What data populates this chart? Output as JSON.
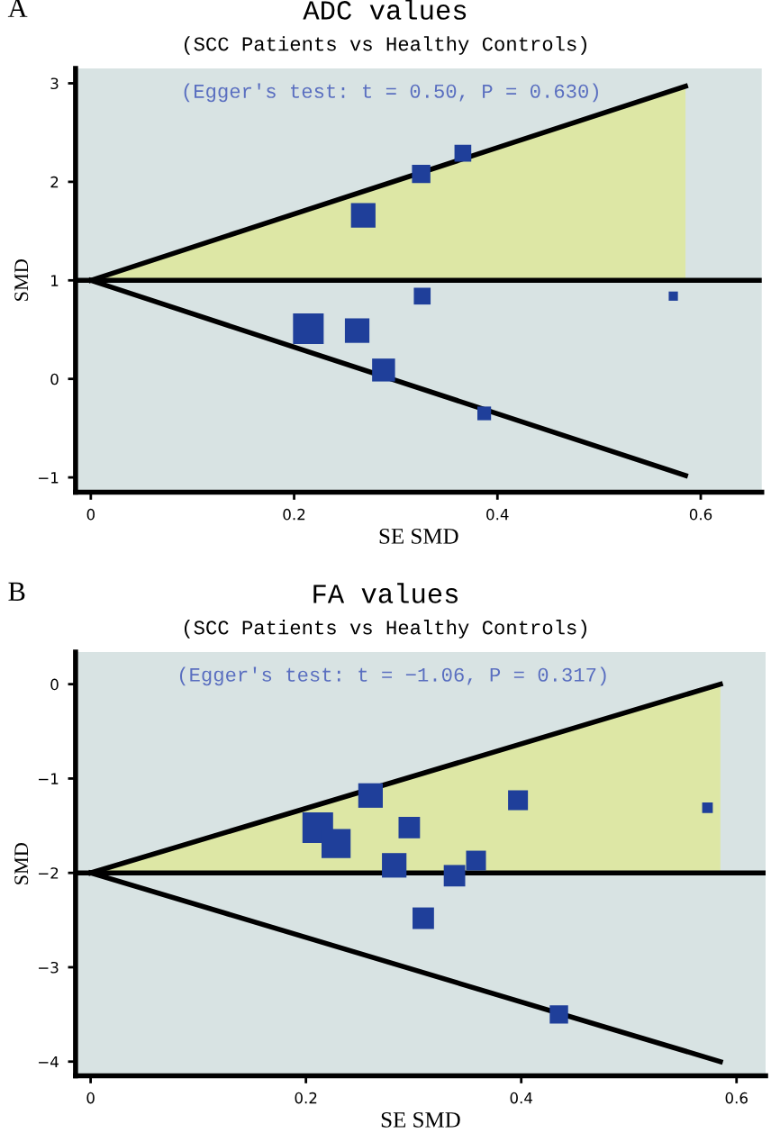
{
  "chart_data": [
    {
      "type": "bubble",
      "title": "ADC values",
      "subtitle": "(SCC Patients vs Healthy Controls)",
      "xlabel": "SE SMD",
      "ylabel": "SMD",
      "annotations": [
        "A",
        "(Egger's test: t = 0.50, P = 0.630)"
      ],
      "ref_lines": [
        {
          "axis": "y",
          "value": 1,
          "color": "#000000"
        }
      ],
      "xlim": [
        -0.015,
        0.66
      ],
      "ylim": [
        -1.15,
        3.15
      ],
      "xticks": [
        0,
        0.2,
        0.4,
        0.6
      ],
      "yticks": [
        -1,
        0,
        1,
        2,
        3
      ],
      "grid": false,
      "legend": false,
      "series": [
        {
          "type": "line",
          "color": "#000000",
          "x": [
            0,
            0.585
          ],
          "values": [
            1,
            2.97
          ]
        },
        {
          "type": "line",
          "color": "#000000",
          "x": [
            0,
            0.585
          ],
          "values": [
            1,
            -0.98
          ]
        },
        {
          "marker": "square",
          "color": "#1f3f9a",
          "x": [
            0.214,
            0.262,
            0.288,
            0.268,
            0.325,
            0.366,
            0.326,
            0.387,
            0.573
          ],
          "values": [
            0.51,
            0.49,
            0.09,
            1.66,
            2.08,
            2.29,
            0.84,
            -0.35,
            0.84
          ],
          "sizes": [
            1,
            0.64,
            0.56,
            0.64,
            0.36,
            0.3,
            0.3,
            0.2,
            0.09
          ]
        }
      ]
    },
    {
      "type": "bubble",
      "title": "FA values",
      "subtitle": "(SCC Patients vs Healthy Controls)",
      "xlabel": "SE SMD",
      "ylabel": "SMD",
      "annotations": [
        "B",
        "(Egger's test: t = −1.06, P = 0.317)"
      ],
      "ref_lines": [
        {
          "axis": "y",
          "value": -2,
          "color": "#000000"
        }
      ],
      "xlim": [
        -0.014,
        0.627
      ],
      "ylim": [
        -4.15,
        0.34
      ],
      "xticks": [
        0,
        0.2,
        0.4,
        0.6
      ],
      "yticks": [
        -4,
        -3,
        -2,
        -1,
        0
      ],
      "grid": false,
      "legend": false,
      "series": [
        {
          "type": "line",
          "color": "#000000",
          "x": [
            0,
            0.585
          ],
          "values": [
            -2,
            0
          ]
        },
        {
          "type": "line",
          "color": "#000000",
          "x": [
            0,
            0.585
          ],
          "values": [
            -2,
            -4
          ]
        },
        {
          "marker": "square",
          "color": "#1f3f9a",
          "x": [
            0.211,
            0.228,
            0.26,
            0.296,
            0.282,
            0.338,
            0.358,
            0.309,
            0.397,
            0.573,
            0.435
          ],
          "values": [
            -1.52,
            -1.69,
            -1.18,
            -1.52,
            -1.92,
            -2.03,
            -1.87,
            -2.48,
            -1.23,
            -1.31,
            -3.5
          ],
          "sizes": [
            1,
            0.9,
            0.64,
            0.49,
            0.64,
            0.49,
            0.42,
            0.49,
            0.42,
            0.12,
            0.36
          ]
        }
      ]
    }
  ]
}
